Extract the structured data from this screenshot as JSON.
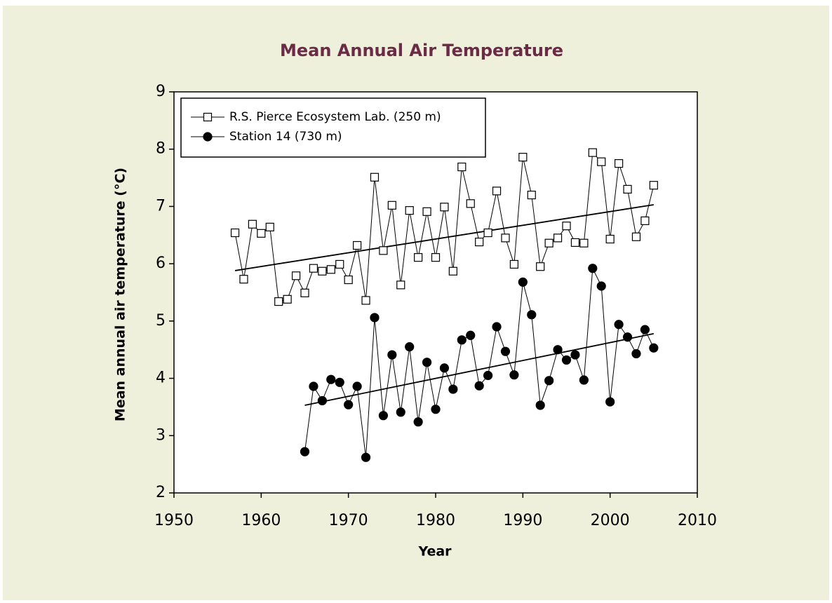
{
  "chart_data": {
    "type": "scatter-line",
    "title": "Mean Annual Air Temperature",
    "x_label": "Year",
    "y_label": "Mean annual air temperature (°C)",
    "xlim": [
      1950,
      2010
    ],
    "xticks": [
      1950,
      1960,
      1970,
      1980,
      1990,
      2000,
      2010
    ],
    "ylim": [
      2,
      9
    ],
    "yticks": [
      2,
      3,
      4,
      5,
      6,
      7,
      8,
      9
    ],
    "legend": "upper left",
    "series": [
      {
        "name": "R.S. Pierce Ecosystem Lab. (250 m)",
        "color": "#000000",
        "marker": "square",
        "filled": false,
        "x": [
          1957,
          1958,
          1959,
          1960,
          1961,
          1962,
          1963,
          1964,
          1965,
          1966,
          1967,
          1968,
          1969,
          1970,
          1971,
          1972,
          1973,
          1974,
          1975,
          1976,
          1977,
          1978,
          1979,
          1980,
          1981,
          1982,
          1983,
          1984,
          1985,
          1986,
          1987,
          1988,
          1989,
          1990,
          1991,
          1992,
          1993,
          1994,
          1995,
          1996,
          1997,
          1998,
          1999,
          2000,
          2001,
          2002,
          2003,
          2004,
          2005
        ],
        "values": [
          6.54,
          5.73,
          6.69,
          6.53,
          6.64,
          5.34,
          5.38,
          5.79,
          5.49,
          5.92,
          5.87,
          5.9,
          5.99,
          5.72,
          6.32,
          5.36,
          7.51,
          6.23,
          7.02,
          5.63,
          6.93,
          6.11,
          6.91,
          6.11,
          6.99,
          5.87,
          7.69,
          7.05,
          6.38,
          6.54,
          7.27,
          6.45,
          5.99,
          7.86,
          7.2,
          5.95,
          6.36,
          6.45,
          6.66,
          6.37,
          6.36,
          7.94,
          7.78,
          6.43,
          7.75,
          7.3,
          6.47,
          6.75,
          7.37
        ],
        "trend": {
          "x": [
            1957,
            2005
          ],
          "values": [
            5.88,
            7.03
          ]
        }
      },
      {
        "name": "Station 14 (730 m)",
        "color": "#000000",
        "marker": "circle",
        "filled": true,
        "x": [
          1965,
          1966,
          1967,
          1968,
          1969,
          1970,
          1971,
          1972,
          1973,
          1974,
          1975,
          1976,
          1977,
          1978,
          1979,
          1980,
          1981,
          1982,
          1983,
          1984,
          1985,
          1986,
          1987,
          1988,
          1989,
          1990,
          1991,
          1992,
          1993,
          1994,
          1995,
          1996,
          1997,
          1998,
          1999,
          2000,
          2001,
          2002,
          2003,
          2004,
          2005
        ],
        "values": [
          2.72,
          3.86,
          3.61,
          3.98,
          3.93,
          3.54,
          3.86,
          2.62,
          5.06,
          3.35,
          4.41,
          3.41,
          4.55,
          3.24,
          4.28,
          3.46,
          4.18,
          3.81,
          4.67,
          4.75,
          3.87,
          4.05,
          4.9,
          4.47,
          4.06,
          5.68,
          5.11,
          3.53,
          3.96,
          4.5,
          4.32,
          4.41,
          3.97,
          5.92,
          5.61,
          3.59,
          4.94,
          4.72,
          4.43,
          4.85,
          4.53
        ],
        "trend": {
          "x": [
            1965,
            2005
          ],
          "values": [
            3.53,
            4.78
          ]
        }
      }
    ]
  }
}
